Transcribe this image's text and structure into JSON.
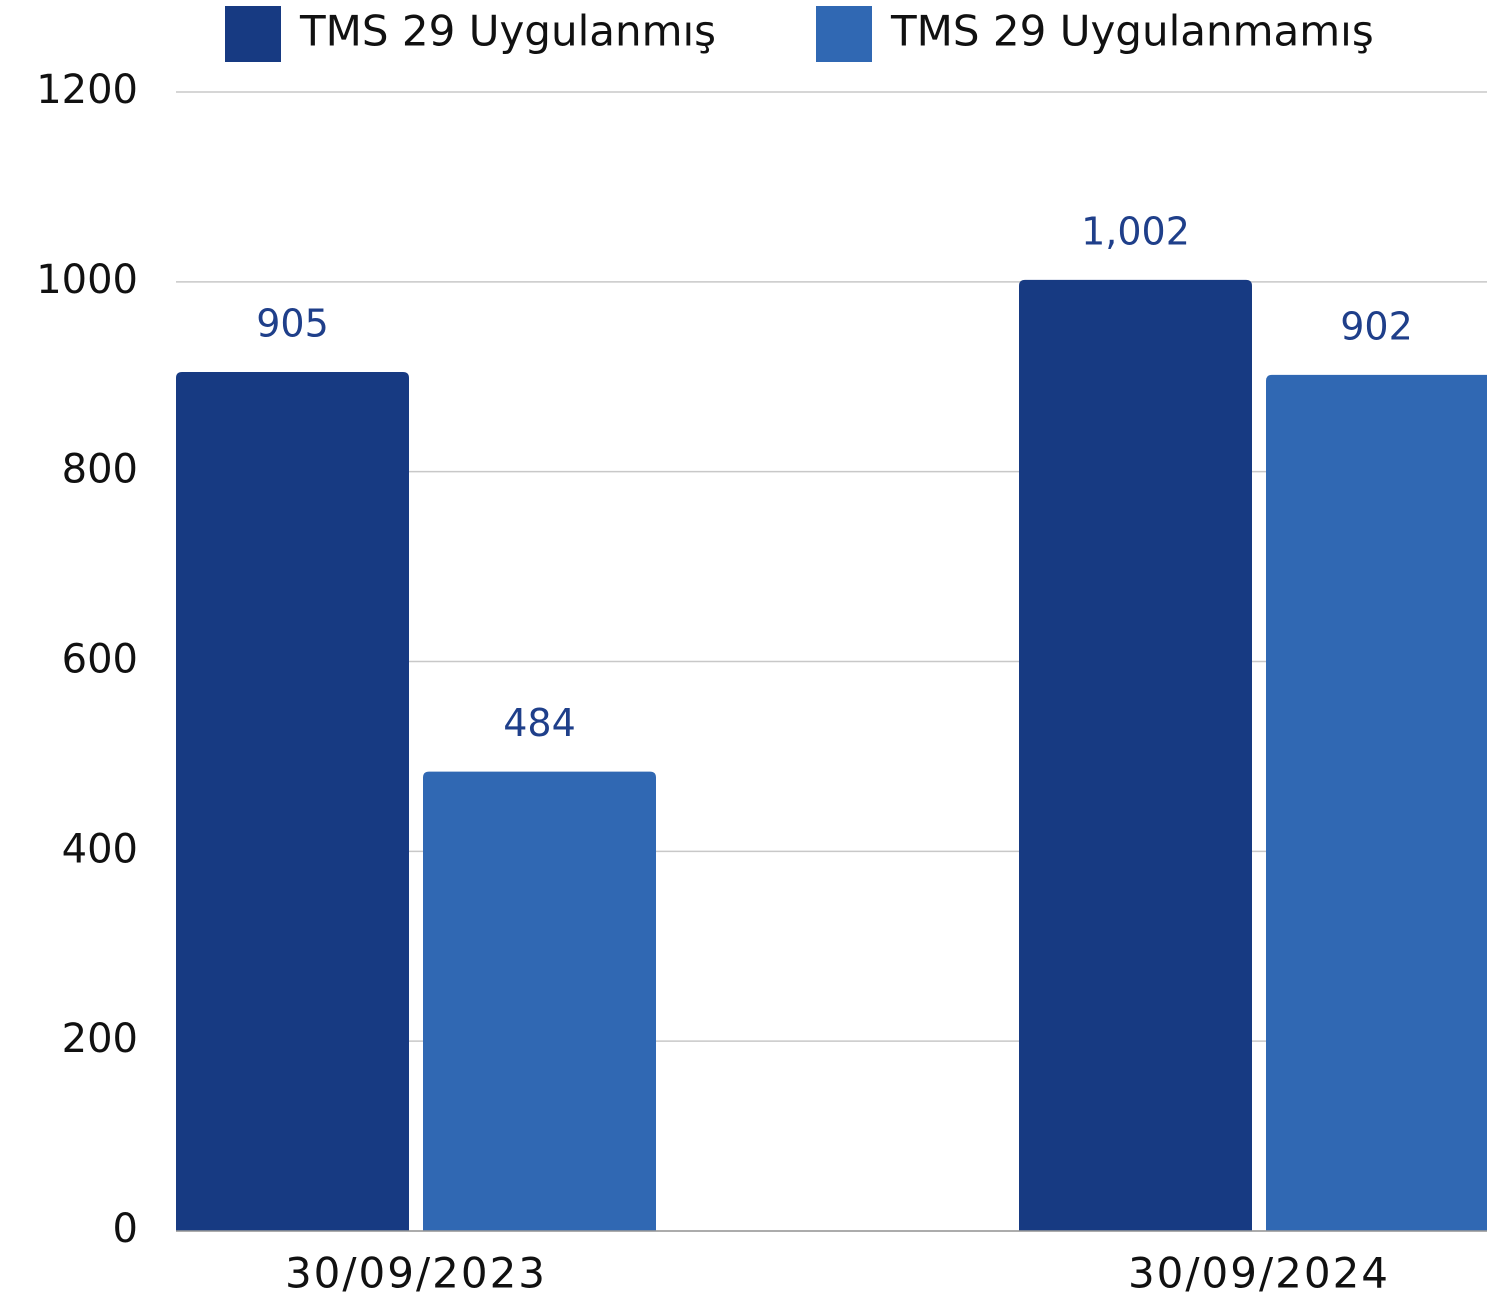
{
  "chart_data": {
    "type": "bar",
    "categories": [
      "30/09/2023",
      "30/09/2024"
    ],
    "series": [
      {
        "name": "TMS 29 Uygulanmış",
        "color": "#173a82",
        "values": [
          905,
          1002
        ],
        "value_labels": [
          "905",
          "1,002"
        ]
      },
      {
        "name": "TMS 29 Uygulanmamış",
        "color": "#3068b3",
        "values": [
          484,
          902
        ],
        "value_labels": [
          "484",
          "902"
        ]
      }
    ],
    "ylim": [
      0,
      1200
    ],
    "yticks": [
      0,
      200,
      400,
      600,
      800,
      1000,
      1200
    ],
    "grid": true,
    "legend": "top"
  }
}
